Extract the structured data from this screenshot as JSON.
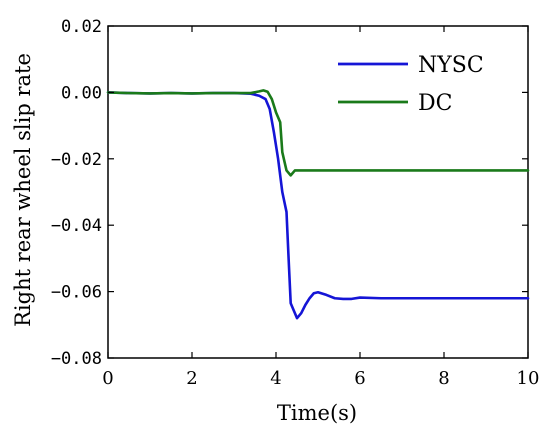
{
  "chart_data": {
    "type": "line",
    "xlabel": "Time(s)",
    "ylabel": "Right rear wheel slip rate",
    "xlim": [
      0,
      10
    ],
    "ylim": [
      -0.08,
      0.02
    ],
    "xticks": [
      0,
      2,
      4,
      6,
      8,
      10
    ],
    "xtick_labels": [
      "0",
      "2",
      "4",
      "6",
      "8",
      "10"
    ],
    "yticks": [
      0.02,
      0.0,
      -0.02,
      -0.04,
      -0.06,
      -0.08
    ],
    "ytick_labels": [
      "0.02",
      "0.00",
      "−0.02",
      "−0.04",
      "−0.06",
      "−0.08"
    ],
    "grid": false,
    "legend": "top-right",
    "series": [
      {
        "name": "NYSC",
        "color": "#1515d6",
        "x": [
          0,
          0.5,
          1.0,
          1.5,
          2.0,
          2.5,
          3.0,
          3.4,
          3.6,
          3.75,
          3.85,
          3.95,
          4.05,
          4.15,
          4.25,
          4.3,
          4.35,
          4.5,
          4.6,
          4.7,
          4.8,
          4.9,
          5.0,
          5.2,
          5.4,
          5.6,
          5.8,
          6.0,
          6.5,
          7.0,
          8.0,
          9.0,
          10.0
        ],
        "y": [
          0.0,
          -0.0002,
          -0.0003,
          -0.0002,
          -0.0003,
          -0.0002,
          -0.0002,
          -0.0004,
          -0.001,
          -0.002,
          -0.005,
          -0.012,
          -0.02,
          -0.03,
          -0.036,
          -0.05,
          -0.0635,
          -0.068,
          -0.0665,
          -0.064,
          -0.062,
          -0.0605,
          -0.0602,
          -0.061,
          -0.062,
          -0.0622,
          -0.0622,
          -0.0618,
          -0.062,
          -0.062,
          -0.062,
          -0.062,
          -0.062
        ]
      },
      {
        "name": "DC",
        "color": "#1a7a1a",
        "x": [
          0,
          0.5,
          1.0,
          1.5,
          2.0,
          2.5,
          3.0,
          3.4,
          3.6,
          3.7,
          3.8,
          3.9,
          4.0,
          4.1,
          4.15,
          4.25,
          4.35,
          4.45,
          5.0,
          6.0,
          7.0,
          8.0,
          9.0,
          10.0
        ],
        "y": [
          0.0,
          -0.0002,
          -0.0003,
          -0.0002,
          -0.0003,
          -0.0002,
          -0.0002,
          -0.0002,
          0.0003,
          0.0006,
          0.0002,
          -0.002,
          -0.006,
          -0.009,
          -0.018,
          -0.0235,
          -0.025,
          -0.0235,
          -0.0235,
          -0.0235,
          -0.0235,
          -0.0235,
          -0.0235,
          -0.0235
        ]
      }
    ]
  }
}
